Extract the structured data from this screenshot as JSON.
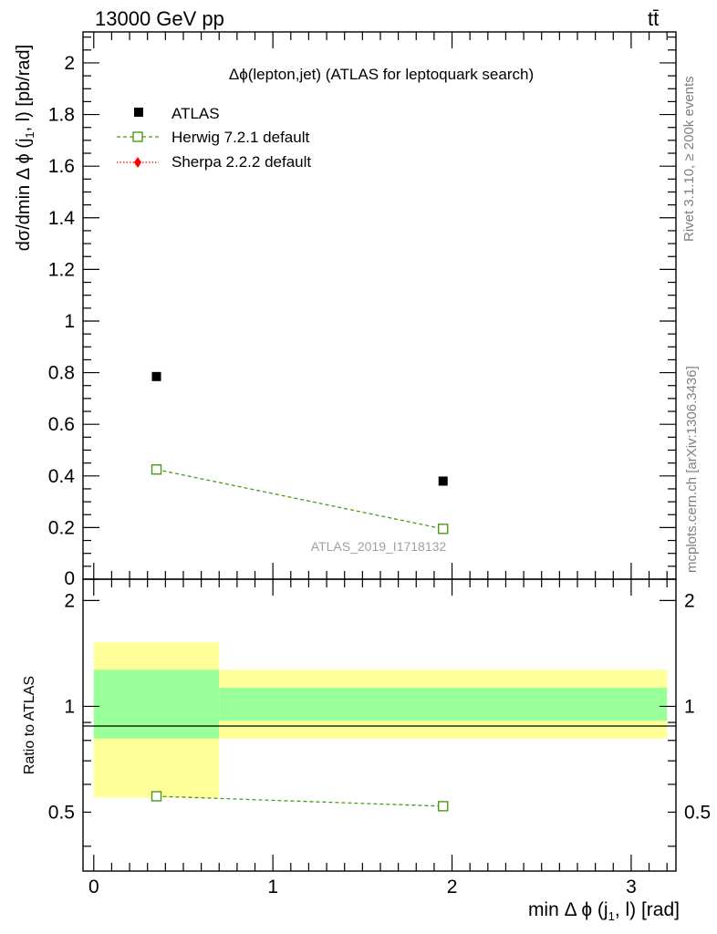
{
  "header": {
    "energy_label": "13000 GeV pp",
    "process_label": "tt̄"
  },
  "side_labels": {
    "rivet": "Rivet 3.1.10, ≥ 200k events",
    "mcplots": "mcplots.cern.ch [arXiv:1306.3436]"
  },
  "chart_data": [
    {
      "type": "scatter",
      "panel": "main",
      "title": "Δϕ(lepton,jet) (ATLAS for leptoquark search)",
      "watermark": "ATLAS_2019_I1718132",
      "ylabel": "dσ/dmin Δ ϕ (j1, l) [pb/rad]",
      "ylim": [
        0,
        2.12
      ],
      "xlim": [
        -0.06,
        3.25
      ],
      "y_ticks": [
        {
          "value": 0.2,
          "label": "0.2"
        },
        {
          "value": 0.4,
          "label": "0.4"
        },
        {
          "value": 0.6,
          "label": "0.6"
        },
        {
          "value": 0.8,
          "label": "0.8"
        },
        {
          "value": 1.0,
          "label": "1"
        },
        {
          "value": 1.2,
          "label": "1.2"
        },
        {
          "value": 1.4,
          "label": "1.4"
        },
        {
          "value": 1.6,
          "label": "1.6"
        },
        {
          "value": 1.8,
          "label": "1.8"
        },
        {
          "value": 2.0,
          "label": "2"
        }
      ],
      "legend_position": "top-left",
      "legend": [
        {
          "name": "ATLAS",
          "style": "data",
          "color": "#000000"
        },
        {
          "name": "Herwig 7.2.1 default",
          "style": "open-square-dashed",
          "color": "#4a9a1a"
        },
        {
          "name": "Sherpa 2.2.2 default",
          "style": "diamond-dotted",
          "color": "#ff0000"
        }
      ],
      "series": [
        {
          "name": "ATLAS",
          "x": [
            0.35,
            1.95
          ],
          "y": [
            0.785,
            0.38
          ]
        },
        {
          "name": "Herwig 7.2.1 default",
          "x": [
            0.35,
            1.95
          ],
          "y": [
            0.425,
            0.195
          ]
        }
      ]
    },
    {
      "type": "scatter",
      "panel": "ratio",
      "ylabel": "Ratio to ATLAS",
      "xlabel": "min Δ ϕ (j1, l) [rad]",
      "ylim": [
        0.34,
        2.3
      ],
      "xlim": [
        -0.06,
        3.25
      ],
      "y_ticks": [
        {
          "value": 0.5,
          "label": "0.5"
        },
        {
          "value": 1.0,
          "label": "1"
        },
        {
          "value": 2.0,
          "label": "2"
        }
      ],
      "x_ticks": [
        {
          "value": 0,
          "label": "0"
        },
        {
          "value": 1,
          "label": "1"
        },
        {
          "value": 2,
          "label": "2"
        },
        {
          "value": 3,
          "label": "3"
        }
      ],
      "bands": [
        {
          "x0": 0.0,
          "x1": 0.7,
          "stat_lo": 0.81,
          "stat_hi": 1.27,
          "total_lo": 0.55,
          "total_hi": 1.52
        },
        {
          "x0": 0.7,
          "x1": 3.2,
          "stat_lo": 0.91,
          "stat_hi": 1.13,
          "total_lo": 0.81,
          "total_hi": 1.27
        }
      ],
      "band_colors": {
        "stat": "#99ff99",
        "total": "#ffff99"
      },
      "series": [
        {
          "name": "Herwig 7.2.1 default",
          "x": [
            0.35,
            1.95
          ],
          "y": [
            0.555,
            0.52
          ]
        }
      ]
    }
  ]
}
